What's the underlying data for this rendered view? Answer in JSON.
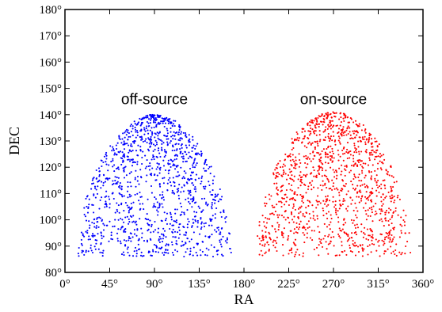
{
  "chart_data": {
    "type": "scatter",
    "xlabel": "RA",
    "ylabel": "DEC",
    "xlim": [
      0,
      360
    ],
    "ylim": [
      80,
      180
    ],
    "degree_symbol": "°",
    "x_ticks": [
      0,
      45,
      90,
      135,
      180,
      225,
      270,
      315,
      360
    ],
    "y_ticks": [
      80,
      90,
      100,
      110,
      120,
      130,
      140,
      150,
      160,
      170,
      180
    ],
    "grid": false,
    "annotations": [
      {
        "text": "off-source",
        "x": 90,
        "y": 144
      },
      {
        "text": "on-source",
        "x": 270,
        "y": 144
      }
    ],
    "series": [
      {
        "color": "#0000ff",
        "region": {
          "x_center": 90,
          "x_halfwidth_at_base": 78,
          "dec_min": 86,
          "dec_max": 140
        },
        "n_points": 1250,
        "seed": 17
      },
      {
        "color": "#ff0000",
        "region": {
          "x_center": 270,
          "x_halfwidth_at_base": 78,
          "dec_min": 86,
          "dec_max": 141
        },
        "n_points": 1250,
        "seed": 91
      }
    ]
  }
}
